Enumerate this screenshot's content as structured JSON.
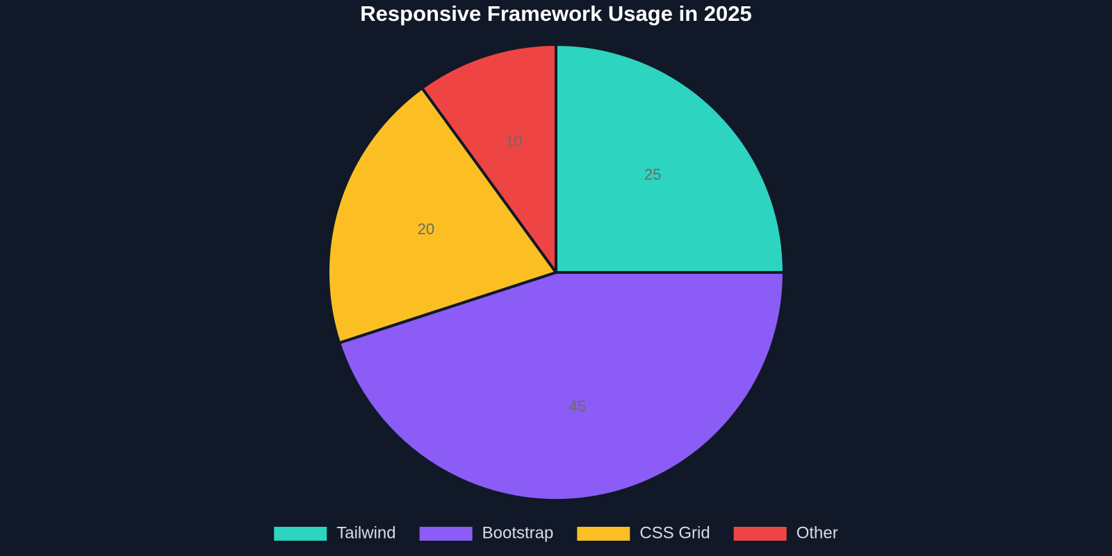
{
  "chart_data": {
    "type": "pie",
    "title": "Responsive Framework Usage in 2025",
    "categories": [
      "Tailwind",
      "Bootstrap",
      "CSS Grid",
      "Other"
    ],
    "values": [
      25,
      45,
      20,
      10
    ],
    "data_labels": [
      "25",
      "45",
      "20",
      "10"
    ],
    "colors": [
      "#2dd4bf",
      "#8b5cf6",
      "#fbbf24",
      "#ef4444"
    ],
    "start_angle": "top",
    "direction": "clockwise",
    "legend_position": "bottom"
  },
  "theme": {
    "background": "#111827",
    "slice_border": "#111827",
    "title_color": "#ffffff",
    "label_color": "#6b6b6b",
    "legend_text_color": "#d9dde3"
  }
}
